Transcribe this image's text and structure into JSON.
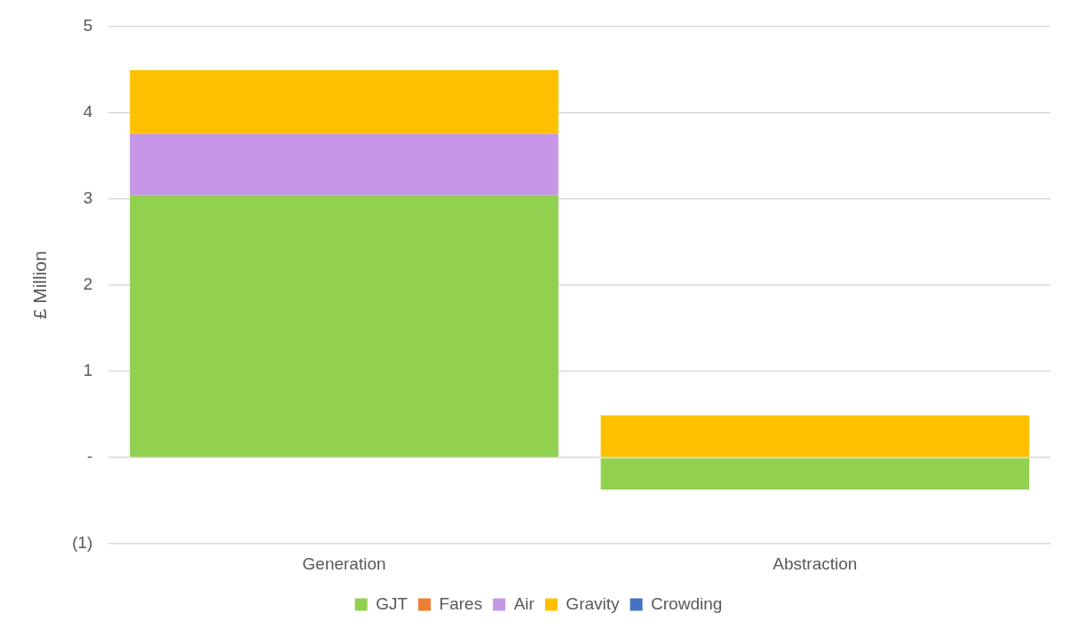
{
  "chart_data": {
    "type": "bar",
    "stacked": true,
    "ylabel": "£ Million",
    "categories": [
      "Generation",
      "Abstraction"
    ],
    "series": [
      {
        "name": "GJT",
        "color": "#92d050",
        "values": [
          3.04,
          -0.37
        ]
      },
      {
        "name": "Fares",
        "color": "#ed7d31",
        "values": [
          0,
          0
        ]
      },
      {
        "name": "Air",
        "color": "#c597e6",
        "values": [
          0.71,
          0
        ]
      },
      {
        "name": "Gravity",
        "color": "#ffc000",
        "values": [
          0.74,
          0.49
        ]
      },
      {
        "name": "Crowding",
        "color": "#4472c4",
        "values": [
          0,
          0
        ]
      }
    ],
    "ylim": [
      -1,
      5
    ],
    "yticks": [
      {
        "value": -1,
        "label": "(1)"
      },
      {
        "value": 0,
        "label": "-"
      },
      1,
      2,
      3,
      4,
      5
    ],
    "grid": "y",
    "legend": "bottom"
  }
}
